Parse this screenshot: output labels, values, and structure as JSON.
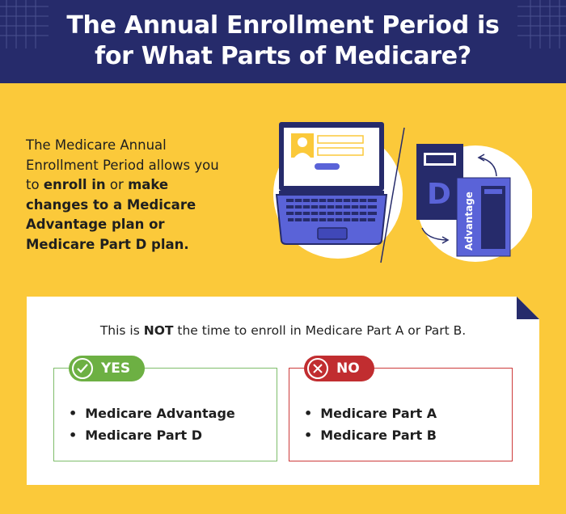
{
  "header": {
    "title_line1": "The Annual Enrollment Period is",
    "title_line2": "for What Parts of Medicare?"
  },
  "intro": {
    "part1": "The Medicare Annual Enrollment Period allows you to ",
    "bold1": "enroll in",
    "part2": " or ",
    "bold2": "make changes to a Medicare Advantage plan or Medicare Part D plan."
  },
  "illustration": {
    "card_letter": "D",
    "card_label": "Advantage"
  },
  "card": {
    "note_prefix": "This is ",
    "note_bold": "NOT",
    "note_suffix": " the time to enroll in Medicare Part A or Part B.",
    "yes": {
      "label": "YES",
      "items": [
        "Medicare Advantage",
        "Medicare Part D"
      ]
    },
    "no": {
      "label": "NO",
      "items": [
        "Medicare Part A",
        "Medicare Part B"
      ]
    }
  },
  "colors": {
    "background": "#fbc93a",
    "header": "#262b6b",
    "accent_blue": "#5a63d8",
    "yes_green": "#6db043",
    "no_red": "#c12d30"
  }
}
